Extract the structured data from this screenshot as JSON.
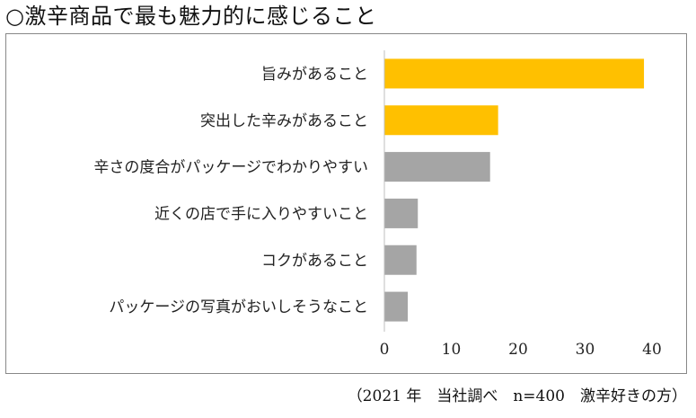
{
  "title": "○激辛商品で最も魅力的に感じること",
  "footnote": "（2021 年　当社調べ　n=400　激辛好きの方）",
  "colors": {
    "highlight": "#FFC000",
    "neutral": "#A5A5A5",
    "axis": "#BFBFBF"
  },
  "chart_data": {
    "type": "bar",
    "orientation": "horizontal",
    "categories": [
      "旨みがあること",
      "突出した辛みがあること",
      "辛さの度合がパッケージでわかりやすい",
      "近くの店で手に入りやすいこと",
      "コクがあること",
      "パッケージの写真がおいしそうなこと"
    ],
    "values": [
      38.8,
      17,
      15.8,
      5,
      4.8,
      3.5
    ],
    "bar_colors": [
      "#FFC000",
      "#FFC000",
      "#A5A5A5",
      "#A5A5A5",
      "#A5A5A5",
      "#A5A5A5"
    ],
    "xlim": [
      0,
      40
    ],
    "xticks": [
      0,
      10,
      20,
      30,
      40
    ],
    "grid": false
  }
}
